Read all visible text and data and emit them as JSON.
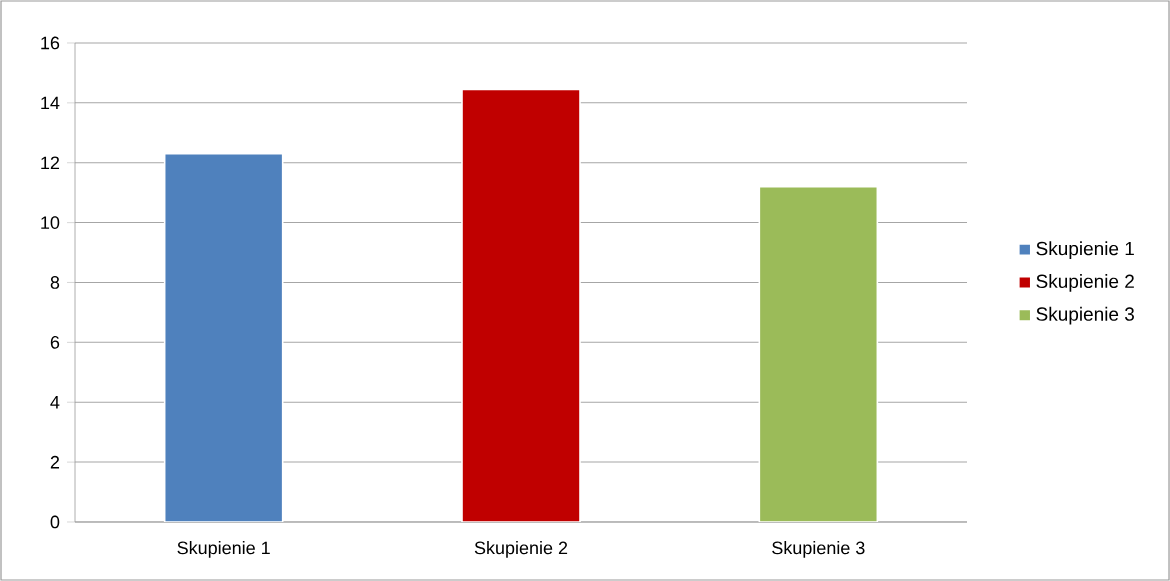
{
  "chart_data": {
    "type": "bar",
    "categories": [
      "Skupienie 1",
      "Skupienie 2",
      "Skupienie 3"
    ],
    "series": [
      {
        "name": "Skupienie 1",
        "color": "#4f81bd",
        "values": [
          12.3,
          null,
          null
        ]
      },
      {
        "name": "Skupienie 2",
        "color": "#c00000",
        "values": [
          null,
          14.45,
          null
        ]
      },
      {
        "name": "Skupienie 3",
        "color": "#9bbb59",
        "values": [
          null,
          null,
          11.2
        ]
      }
    ],
    "ylim": [
      0,
      16
    ],
    "yticks": [
      0,
      2,
      4,
      6,
      8,
      10,
      12,
      14,
      16
    ],
    "grid": "y",
    "legend": "right"
  }
}
